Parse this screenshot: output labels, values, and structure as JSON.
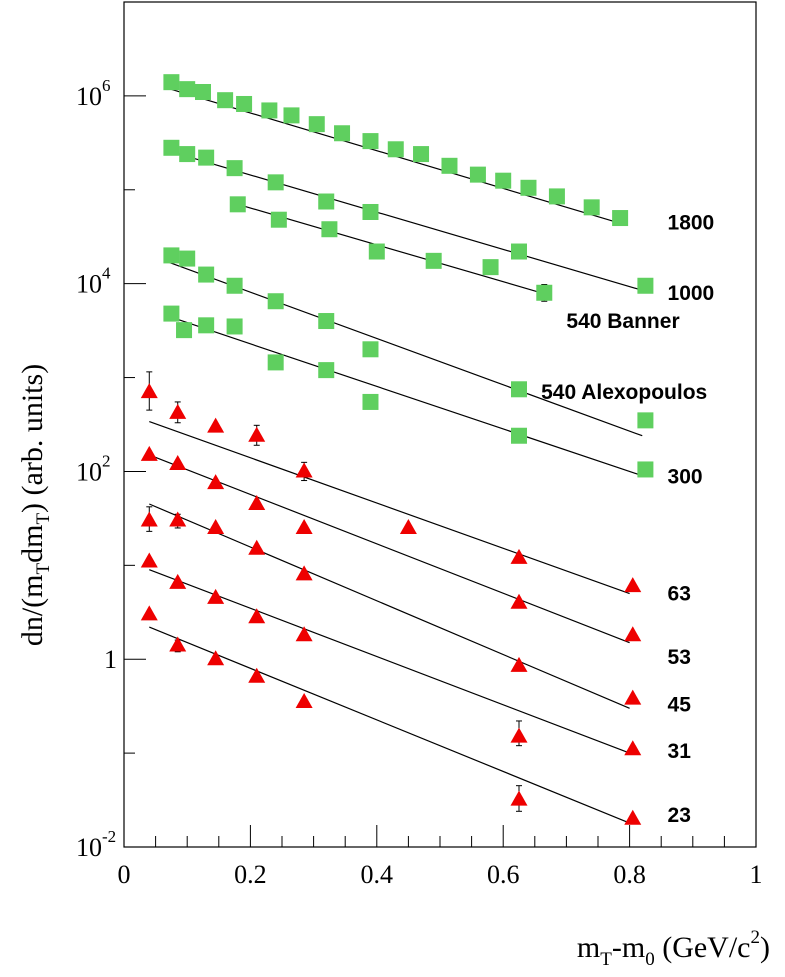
{
  "chart_data": {
    "type": "scatter",
    "title": "",
    "xlabel": {
      "main": "m",
      "sub1": "T",
      "mid": "-m",
      "sub2": "0",
      "tail": " (GeV/c",
      "sup": "2",
      "end": ")"
    },
    "ylabel": {
      "a": "dn/(m",
      "s1": "T",
      "b": "dm",
      "s2": "T",
      "c": ") (arb. units)"
    },
    "xlim": [
      0,
      1
    ],
    "ylim_log10": [
      -2,
      7
    ],
    "y_scale": "log",
    "x_ticks": [
      {
        "value": 0,
        "label": "0"
      },
      {
        "value": 0.2,
        "label": "0.2"
      },
      {
        "value": 0.4,
        "label": "0.4"
      },
      {
        "value": 0.6,
        "label": "0.6"
      },
      {
        "value": 0.8,
        "label": "0.8"
      },
      {
        "value": 1,
        "label": "1"
      }
    ],
    "y_ticks": [
      {
        "exp": -2,
        "base": "10",
        "sup": "-2"
      },
      {
        "exp": 0,
        "base": "1",
        "sup": ""
      },
      {
        "exp": 2,
        "base": "10",
        "sup": "2"
      },
      {
        "exp": 4,
        "base": "10",
        "sup": "4"
      },
      {
        "exp": 6,
        "base": "10",
        "sup": "6"
      }
    ],
    "colors": {
      "square": "#5fcf5f",
      "triangle": "#ee0000",
      "line": "#000000"
    },
    "series": [
      {
        "name": "1800",
        "marker": "square",
        "fit": {
          "x": [
            0.07,
            0.78
          ],
          "y": [
            1200000,
            45000
          ]
        },
        "points": [
          [
            0.075,
            1400000
          ],
          [
            0.1,
            1180000
          ],
          [
            0.125,
            1100000
          ],
          [
            0.16,
            900000
          ],
          [
            0.19,
            820000
          ],
          [
            0.23,
            700000
          ],
          [
            0.265,
            620000
          ],
          [
            0.305,
            500000
          ],
          [
            0.345,
            400000
          ],
          [
            0.39,
            330000
          ],
          [
            0.43,
            270000
          ],
          [
            0.47,
            240000
          ],
          [
            0.515,
            180000
          ],
          [
            0.56,
            145000
          ],
          [
            0.6,
            125000
          ],
          [
            0.64,
            105000
          ],
          [
            0.685,
            85000
          ],
          [
            0.74,
            65000
          ],
          [
            0.785,
            50000
          ]
        ]
      },
      {
        "name": "1000",
        "marker": "square",
        "fit": {
          "x": [
            0.07,
            0.82
          ],
          "y": [
            260000,
            8500
          ]
        },
        "points": [
          [
            0.075,
            280000
          ],
          [
            0.1,
            240000
          ],
          [
            0.13,
            220000
          ],
          [
            0.175,
            170000
          ],
          [
            0.24,
            120000
          ],
          [
            0.32,
            75000
          ],
          [
            0.39,
            58000
          ],
          [
            0.625,
            22000
          ],
          [
            0.825,
            9500
          ]
        ]
      },
      {
        "name": "540 Banner",
        "marker": "square",
        "fit": {
          "x": [
            0.18,
            0.66
          ],
          "y": [
            70000,
            8000
          ]
        },
        "points": [
          [
            0.18,
            70000
          ],
          [
            0.245,
            48000
          ],
          [
            0.325,
            38000
          ],
          [
            0.4,
            22000
          ],
          [
            0.49,
            17500
          ],
          [
            0.58,
            15000
          ],
          [
            0.665,
            8000
          ]
        ],
        "err": [
          [
            0.665,
            6500,
            9800
          ]
        ]
      },
      {
        "name": "540 Alexopoulos",
        "marker": "square",
        "fit": {
          "x": [
            0.07,
            0.82
          ],
          "y": [
            17000,
            240
          ]
        },
        "points": [
          [
            0.075,
            20000
          ],
          [
            0.1,
            18500
          ],
          [
            0.13,
            12500
          ],
          [
            0.175,
            9500
          ],
          [
            0.24,
            6500
          ],
          [
            0.32,
            4000
          ],
          [
            0.39,
            2000
          ],
          [
            0.625,
            750
          ],
          [
            0.825,
            350
          ]
        ]
      },
      {
        "name": "300",
        "marker": "square",
        "fit": {
          "x": [
            0.07,
            0.82
          ],
          "y": [
            4500,
            90
          ]
        },
        "points": [
          [
            0.075,
            4800
          ],
          [
            0.095,
            3200
          ],
          [
            0.13,
            3600
          ],
          [
            0.175,
            3500
          ],
          [
            0.24,
            1450
          ],
          [
            0.32,
            1200
          ],
          [
            0.39,
            550
          ],
          [
            0.625,
            240
          ],
          [
            0.825,
            105
          ]
        ],
        "err": [
          [
            0.24,
            1300,
            1600
          ]
        ]
      },
      {
        "name": "63",
        "marker": "triangle",
        "fit": {
          "x": [
            0.04,
            0.8
          ],
          "y": [
            340,
            5
          ]
        },
        "points": [
          [
            0.04,
            700
          ],
          [
            0.085,
            420
          ],
          [
            0.145,
            300
          ],
          [
            0.21,
            240
          ],
          [
            0.285,
            100
          ],
          [
            0.45,
            25
          ],
          [
            0.625,
            12
          ],
          [
            0.805,
            6
          ]
        ],
        "err": [
          [
            0.04,
            450,
            1150
          ],
          [
            0.085,
            330,
            550
          ],
          [
            0.21,
            190,
            310
          ],
          [
            0.285,
            80,
            125
          ]
        ]
      },
      {
        "name": "53",
        "marker": "triangle",
        "fit": {
          "x": [
            0.04,
            0.8
          ],
          "y": [
            150,
            1.5
          ]
        },
        "points": [
          [
            0.04,
            150
          ],
          [
            0.085,
            120
          ],
          [
            0.145,
            75
          ],
          [
            0.21,
            45
          ],
          [
            0.285,
            25
          ],
          [
            0.625,
            4
          ],
          [
            0.805,
            1.8
          ]
        ]
      },
      {
        "name": "45",
        "marker": "triangle",
        "fit": {
          "x": [
            0.04,
            0.8
          ],
          "y": [
            45,
            0.3
          ]
        },
        "points": [
          [
            0.04,
            30
          ],
          [
            0.085,
            30
          ],
          [
            0.145,
            25
          ],
          [
            0.21,
            15
          ],
          [
            0.285,
            8
          ],
          [
            0.625,
            0.85
          ],
          [
            0.805,
            0.38
          ]
        ],
        "err": [
          [
            0.04,
            23,
            42
          ],
          [
            0.085,
            25,
            35
          ]
        ]
      },
      {
        "name": "31",
        "marker": "triangle",
        "fit": {
          "x": [
            0.04,
            0.8
          ],
          "y": [
            9,
            0.1
          ]
        },
        "points": [
          [
            0.04,
            11
          ],
          [
            0.085,
            6.5
          ],
          [
            0.145,
            4.5
          ],
          [
            0.21,
            2.8
          ],
          [
            0.285,
            1.8
          ],
          [
            0.625,
            0.15
          ],
          [
            0.805,
            0.11
          ]
        ]
      },
      {
        "name": "23",
        "marker": "triangle",
        "fit": {
          "x": [
            0.04,
            0.8
          ],
          "y": [
            2.2,
            0.018
          ]
        },
        "points": [
          [
            0.04,
            3
          ],
          [
            0.085,
            1.4
          ],
          [
            0.145,
            1
          ],
          [
            0.21,
            0.65
          ],
          [
            0.285,
            0.35
          ],
          [
            0.625,
            0.032
          ],
          [
            0.805,
            0.02
          ]
        ],
        "err": [
          [
            0.085,
            1.2,
            1.6
          ],
          [
            0.625,
            0.024,
            0.045
          ],
          [
            0.625,
            0.12,
            0.22
          ]
        ]
      }
    ],
    "labels": [
      {
        "text": "1800",
        "x": 0.86,
        "y": 45000
      },
      {
        "text": "1000",
        "x": 0.86,
        "y": 8000
      },
      {
        "text": "540 Banner",
        "x": 0.7,
        "y": 4000
      },
      {
        "text": "540 Alexopoulos",
        "x": 0.66,
        "y": 700
      },
      {
        "text": "300",
        "x": 0.86,
        "y": 88
      },
      {
        "text": "63",
        "x": 0.86,
        "y": 5
      },
      {
        "text": "53",
        "x": 0.86,
        "y": 1.05
      },
      {
        "text": "45",
        "x": 0.86,
        "y": 0.33
      },
      {
        "text": "31",
        "x": 0.86,
        "y": 0.105
      },
      {
        "text": "23",
        "x": 0.86,
        "y": 0.022
      }
    ]
  }
}
